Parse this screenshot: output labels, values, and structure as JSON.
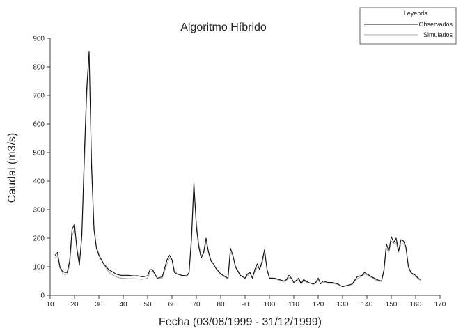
{
  "chart_data": {
    "type": "line",
    "title": "Algoritmo Híbrido",
    "xlabel": "Fecha (03/08/1999 - 31/12/1999)",
    "ylabel": "Caudal (m3/s)",
    "xlim": [
      10,
      170
    ],
    "ylim": [
      0,
      900
    ],
    "xticks": [
      10,
      20,
      30,
      40,
      50,
      60,
      70,
      80,
      90,
      100,
      110,
      120,
      130,
      140,
      150,
      160,
      170
    ],
    "yticks": [
      0,
      100,
      200,
      300,
      400,
      500,
      600,
      700,
      800,
      900
    ],
    "legend": {
      "title": "Leyenda",
      "position": "top-right"
    },
    "colors": {
      "observados": "#111111",
      "simulados": "#a8a8a8",
      "axis": "#444444"
    },
    "series": [
      {
        "name": "Observados",
        "x": [
          12,
          13,
          14,
          15,
          16,
          17,
          18,
          19,
          20,
          21,
          22,
          23,
          24,
          25,
          26,
          27,
          28,
          29,
          30,
          31,
          32,
          33,
          34,
          35,
          36,
          37,
          38,
          39,
          40,
          42,
          44,
          46,
          48,
          50,
          51,
          52,
          53,
          54,
          56,
          58,
          59,
          60,
          61,
          62,
          64,
          66,
          67,
          68,
          69,
          70,
          71,
          72,
          73,
          74,
          75,
          76,
          77,
          78,
          80,
          82,
          83,
          84,
          85,
          86,
          88,
          90,
          91,
          92,
          93,
          94,
          95,
          96,
          97,
          98,
          99,
          100,
          102,
          104,
          106,
          107,
          108,
          109,
          110,
          112,
          113,
          114,
          116,
          118,
          119,
          120,
          121,
          122,
          124,
          126,
          128,
          130,
          132,
          134,
          136,
          138,
          139,
          140,
          142,
          144,
          146,
          147,
          148,
          149,
          150,
          151,
          152,
          153,
          154,
          155,
          156,
          157,
          158,
          159,
          160,
          161,
          162
        ],
        "y": [
          140,
          150,
          100,
          85,
          80,
          80,
          120,
          230,
          250,
          160,
          105,
          210,
          480,
          720,
          855,
          450,
          230,
          165,
          140,
          125,
          110,
          100,
          90,
          85,
          80,
          75,
          72,
          70,
          70,
          70,
          68,
          68,
          65,
          68,
          90,
          90,
          75,
          60,
          65,
          125,
          140,
          125,
          80,
          75,
          70,
          68,
          80,
          200,
          395,
          240,
          170,
          130,
          150,
          200,
          150,
          120,
          110,
          95,
          75,
          65,
          60,
          165,
          140,
          100,
          70,
          60,
          75,
          80,
          60,
          90,
          110,
          90,
          120,
          160,
          90,
          60,
          60,
          55,
          50,
          55,
          70,
          60,
          45,
          60,
          40,
          55,
          45,
          40,
          45,
          60,
          40,
          50,
          45,
          45,
          40,
          30,
          35,
          40,
          65,
          70,
          80,
          75,
          65,
          55,
          50,
          90,
          180,
          155,
          205,
          185,
          200,
          155,
          195,
          190,
          170,
          100,
          80,
          75,
          70,
          60,
          55
        ]
      },
      {
        "name": "Simulados",
        "x": [
          12,
          13,
          14,
          15,
          16,
          17,
          18,
          19,
          20,
          21,
          22,
          23,
          24,
          25,
          26,
          27,
          28,
          29,
          30,
          31,
          32,
          33,
          34,
          35,
          36,
          37,
          38,
          39,
          40,
          42,
          44,
          46,
          48,
          50,
          51,
          52,
          53,
          54,
          56,
          58,
          59,
          60,
          61,
          62,
          64,
          66,
          67,
          68,
          69,
          70,
          71,
          72,
          73,
          74,
          75,
          76,
          77,
          78,
          80,
          82,
          83,
          84,
          85,
          86,
          88,
          90,
          91,
          92,
          93,
          94,
          95,
          96,
          97,
          98,
          99,
          100,
          102,
          104,
          106,
          107,
          108,
          109,
          110,
          112,
          113,
          114,
          116,
          118,
          119,
          120,
          121,
          122,
          124,
          126,
          128,
          130,
          132,
          134,
          136,
          138,
          139,
          140,
          142,
          144,
          146,
          147,
          148,
          149,
          150,
          151,
          152,
          153,
          154,
          155,
          156,
          157,
          158,
          159,
          160,
          161,
          162
        ],
        "y": [
          130,
          140,
          95,
          80,
          72,
          75,
          105,
          205,
          235,
          170,
          115,
          195,
          440,
          690,
          830,
          480,
          245,
          170,
          145,
          125,
          108,
          95,
          82,
          75,
          70,
          65,
          62,
          60,
          60,
          58,
          58,
          57,
          56,
          60,
          80,
          85,
          72,
          58,
          60,
          110,
          130,
          125,
          88,
          76,
          70,
          66,
          75,
          180,
          370,
          260,
          180,
          140,
          145,
          185,
          155,
          125,
          110,
          96,
          75,
          62,
          58,
          150,
          140,
          105,
          72,
          58,
          68,
          78,
          62,
          82,
          100,
          92,
          110,
          150,
          95,
          62,
          58,
          52,
          48,
          52,
          62,
          58,
          45,
          55,
          42,
          50,
          44,
          38,
          42,
          55,
          42,
          46,
          42,
          42,
          38,
          32,
          33,
          38,
          58,
          68,
          74,
          72,
          62,
          52,
          48,
          82,
          165,
          150,
          190,
          180,
          185,
          150,
          180,
          180,
          165,
          105,
          82,
          70,
          65,
          58,
          52
        ]
      }
    ]
  }
}
